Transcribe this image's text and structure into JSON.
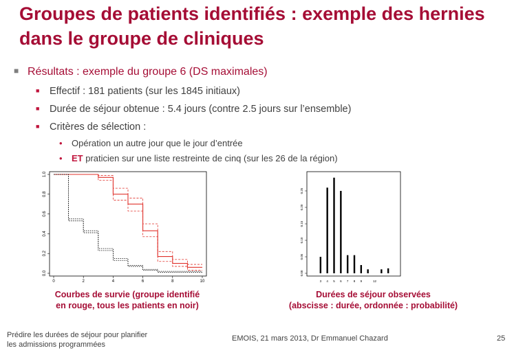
{
  "title": "Groupes de patients identifiés : exemple des hernies dans le groupe de cliniques",
  "results": {
    "heading": "Résultats : exemple du groupe 6 (DS maximales)",
    "items": [
      "Effectif : 181 patients (sur les 1845 initiaux)",
      "Durée de séjour obtenue : 5.4 jours (contre 2.5 jours sur l’ensemble)",
      "Critères de sélection :"
    ],
    "criteria": [
      {
        "bold": "",
        "text": "Opération un autre jour que le jour d’entrée"
      },
      {
        "bold": "ET",
        "text": " praticien sur une liste restreinte de cinq (sur les 26 de la région)"
      }
    ]
  },
  "colors": {
    "accent": "#a50d35",
    "bullet": "#c0143c",
    "red_curve": "#e0302a",
    "black_curve": "#000000"
  },
  "chart_data": [
    {
      "type": "line",
      "caption_line1": "Courbes de survie (groupe identifié",
      "caption_line2": "en rouge, tous les patients en noir)",
      "x_ticks": [
        "0",
        "2",
        "4",
        "6",
        "8",
        "10"
      ],
      "y_ticks": [
        "0.0",
        "0.2",
        "0.4",
        "0.6",
        "0.8",
        "1.0"
      ],
      "xlim": [
        0,
        10
      ],
      "ylim": [
        0,
        1
      ],
      "series": [
        {
          "color": "red",
          "style": "solid",
          "x": [
            0,
            3,
            3,
            4,
            4,
            5,
            5,
            6,
            6,
            7,
            7,
            8,
            8,
            9,
            9,
            10
          ],
          "y": [
            1,
            1,
            0.97,
            0.97,
            0.8,
            0.8,
            0.7,
            0.7,
            0.43,
            0.43,
            0.17,
            0.17,
            0.1,
            0.1,
            0.06,
            0.06
          ]
        },
        {
          "color": "red",
          "style": "dashed",
          "x": [
            0,
            3,
            3,
            4,
            4,
            5,
            5,
            6,
            6,
            7,
            7,
            8,
            8,
            9,
            9,
            10
          ],
          "y": [
            1,
            1,
            0.99,
            0.99,
            0.86,
            0.86,
            0.76,
            0.76,
            0.5,
            0.5,
            0.22,
            0.22,
            0.14,
            0.14,
            0.09,
            0.09
          ]
        },
        {
          "color": "red",
          "style": "dashed",
          "x": [
            0,
            3,
            3,
            4,
            4,
            5,
            5,
            6,
            6,
            7,
            7,
            8,
            8,
            9,
            9,
            10
          ],
          "y": [
            1,
            1,
            0.94,
            0.94,
            0.74,
            0.74,
            0.63,
            0.63,
            0.37,
            0.37,
            0.12,
            0.12,
            0.07,
            0.07,
            0.03,
            0.03
          ]
        },
        {
          "color": "black",
          "style": "dotted",
          "x": [
            0,
            1,
            1,
            2,
            2,
            3,
            3,
            4,
            4,
            5,
            5,
            6,
            6,
            7,
            7,
            10
          ],
          "y": [
            1,
            1,
            0.55,
            0.55,
            0.43,
            0.43,
            0.25,
            0.25,
            0.15,
            0.15,
            0.08,
            0.08,
            0.04,
            0.04,
            0.02,
            0.02
          ]
        },
        {
          "color": "black",
          "style": "dotted",
          "x": [
            0,
            1,
            1,
            2,
            2,
            3,
            3,
            4,
            4,
            5,
            5,
            6,
            6,
            7,
            7,
            10
          ],
          "y": [
            1,
            1,
            0.53,
            0.53,
            0.41,
            0.41,
            0.23,
            0.23,
            0.13,
            0.13,
            0.07,
            0.07,
            0.03,
            0.03,
            0.01,
            0.01
          ]
        }
      ]
    },
    {
      "type": "bar",
      "caption_line1": "Durées de séjour observées",
      "caption_line2": "(abscisse : durée, ordonnée : probabilité)",
      "x": [
        3,
        4,
        5,
        6,
        7,
        8,
        9,
        10,
        12,
        13
      ],
      "values": [
        0.05,
        0.26,
        0.29,
        0.25,
        0.055,
        0.055,
        0.025,
        0.012,
        0.012,
        0.015
      ],
      "x_ticks": [
        "3",
        "4",
        "5",
        "6",
        "7",
        "8",
        "9",
        "",
        "12"
      ],
      "y_ticks": [
        "0.00",
        "0.05",
        "0.10",
        "0.15",
        "0.20",
        "0.25"
      ],
      "ylim": [
        0,
        0.3
      ]
    }
  ],
  "footer": {
    "left_line1": "Prédire les durées de séjour pour planifier",
    "left_line2": "les admissions programmées",
    "center": "EMOIS,  21 mars 2013, Dr Emmanuel Chazard",
    "page": "25"
  }
}
